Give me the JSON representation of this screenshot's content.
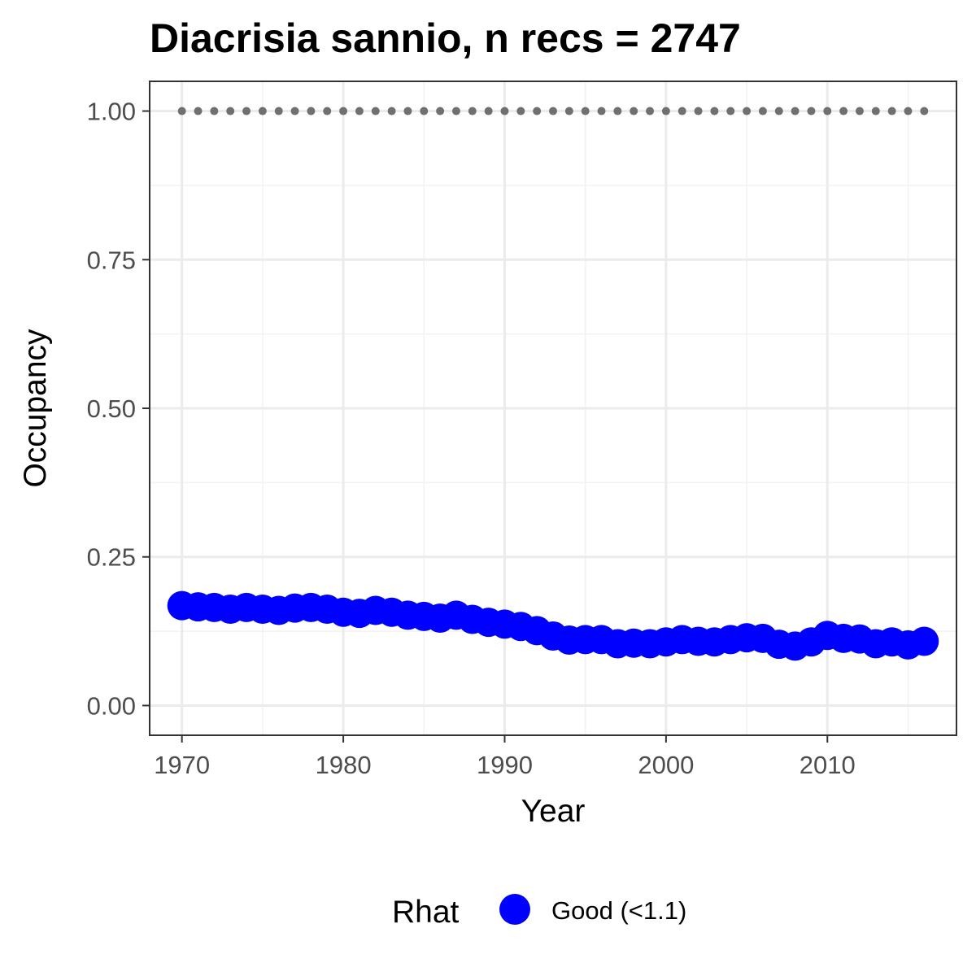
{
  "chart_data": {
    "type": "scatter",
    "title": "Diacrisia sannio, n recs = 2747",
    "xlabel": "Year",
    "ylabel": "Occupancy",
    "xlim": [
      1968,
      2018
    ],
    "ylim": [
      -0.05,
      1.05
    ],
    "x_ticks": [
      1970,
      1980,
      1990,
      2000,
      2010
    ],
    "x_tick_labels": [
      "1970",
      "1980",
      "1990",
      "2000",
      "2010"
    ],
    "y_ticks": [
      0,
      0.25,
      0.5,
      0.75,
      1
    ],
    "y_tick_labels": [
      "0.00",
      "0.25",
      "0.50",
      "0.75",
      "1.00"
    ],
    "grid": true,
    "legend": {
      "position": "bottom",
      "title": "Rhat",
      "entries": [
        {
          "label": "Good (<1.1)",
          "color": "#0000ff"
        }
      ]
    },
    "series": [
      {
        "name": "Good (<1.1)",
        "color": "#0000ff",
        "x": [
          1970,
          1971,
          1972,
          1973,
          1974,
          1975,
          1976,
          1977,
          1978,
          1979,
          1980,
          1981,
          1982,
          1983,
          1984,
          1985,
          1986,
          1987,
          1988,
          1989,
          1990,
          1991,
          1992,
          1993,
          1994,
          1995,
          1996,
          1997,
          1998,
          1999,
          2000,
          2001,
          2002,
          2003,
          2004,
          2005,
          2006,
          2007,
          2008,
          2009,
          2010,
          2011,
          2012,
          2013,
          2014,
          2015,
          2016
        ],
        "y": [
          0.168,
          0.166,
          0.165,
          0.162,
          0.165,
          0.162,
          0.16,
          0.164,
          0.165,
          0.162,
          0.157,
          0.155,
          0.16,
          0.157,
          0.152,
          0.15,
          0.147,
          0.152,
          0.145,
          0.14,
          0.137,
          0.133,
          0.126,
          0.117,
          0.11,
          0.111,
          0.111,
          0.104,
          0.105,
          0.104,
          0.107,
          0.111,
          0.108,
          0.107,
          0.111,
          0.114,
          0.113,
          0.103,
          0.1,
          0.107,
          0.118,
          0.113,
          0.112,
          0.104,
          0.107,
          0.102,
          0.108
        ]
      },
      {
        "name": "",
        "color": "#707070",
        "style": "dotted",
        "x": [
          1970,
          1971,
          1972,
          1973,
          1974,
          1975,
          1976,
          1977,
          1978,
          1979,
          1980,
          1981,
          1982,
          1983,
          1984,
          1985,
          1986,
          1987,
          1988,
          1989,
          1990,
          1991,
          1992,
          1993,
          1994,
          1995,
          1996,
          1997,
          1998,
          1999,
          2000,
          2001,
          2002,
          2003,
          2004,
          2005,
          2006,
          2007,
          2008,
          2009,
          2010,
          2011,
          2012,
          2013,
          2014,
          2015,
          2016
        ],
        "y": [
          1,
          1,
          1,
          1,
          1,
          1,
          1,
          1,
          1,
          1,
          1,
          1,
          1,
          1,
          1,
          1,
          1,
          1,
          1,
          1,
          1,
          1,
          1,
          1,
          1,
          1,
          1,
          1,
          1,
          1,
          1,
          1,
          1,
          1,
          1,
          1,
          1,
          1,
          1,
          1,
          1,
          1,
          1,
          1,
          1,
          1,
          1
        ]
      }
    ]
  }
}
